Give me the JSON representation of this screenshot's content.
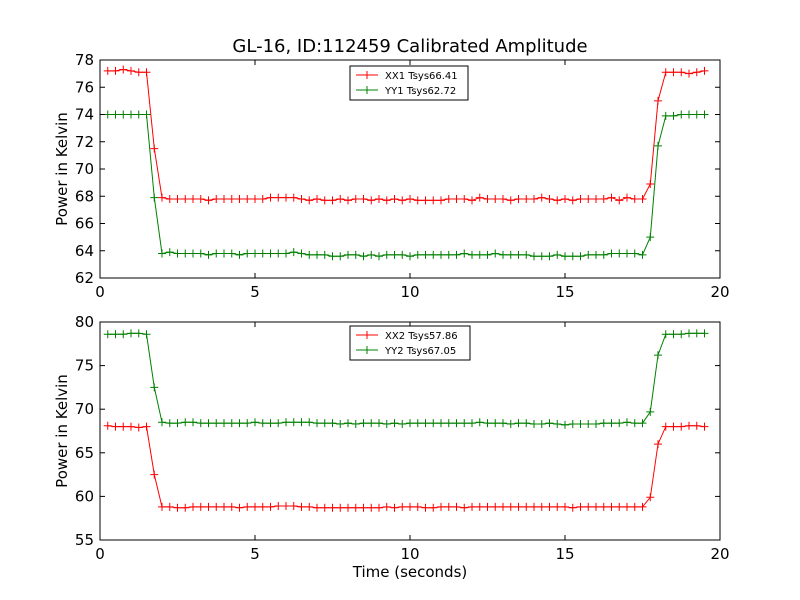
{
  "chart_data": [
    {
      "type": "line",
      "title": "GL-16, ID:112459 Calibrated Amplitude",
      "xlabel": "",
      "ylabel": "Power in Kelvin",
      "xlim": [
        0,
        20
      ],
      "ylim": [
        62,
        78
      ],
      "xticks": [
        0,
        5,
        10,
        15,
        20
      ],
      "yticks": [
        62,
        64,
        66,
        68,
        70,
        72,
        74,
        76,
        78
      ],
      "grid": false,
      "legend_position": "top-center",
      "x": [
        0.25,
        0.5,
        0.75,
        1.0,
        1.25,
        1.5,
        1.75,
        2.0,
        2.25,
        2.5,
        2.75,
        3.0,
        3.25,
        3.5,
        3.75,
        4.0,
        4.25,
        4.5,
        4.75,
        5.0,
        5.25,
        5.5,
        5.75,
        6.0,
        6.25,
        6.5,
        6.75,
        7.0,
        7.25,
        7.5,
        7.75,
        8.0,
        8.25,
        8.5,
        8.75,
        9.0,
        9.25,
        9.5,
        9.75,
        10.0,
        10.25,
        10.5,
        10.75,
        11.0,
        11.25,
        11.5,
        11.75,
        12.0,
        12.25,
        12.5,
        12.75,
        13.0,
        13.25,
        13.5,
        13.75,
        14.0,
        14.25,
        14.5,
        14.75,
        15.0,
        15.25,
        15.5,
        15.75,
        16.0,
        16.25,
        16.5,
        16.75,
        17.0,
        17.25,
        17.5,
        17.75,
        18.0,
        18.25,
        18.5,
        18.75,
        19.0,
        19.25,
        19.5
      ],
      "series": [
        {
          "name": "XX1 Tsys66.41",
          "color": "#ff0000",
          "values": [
            77.2,
            77.2,
            77.3,
            77.2,
            77.1,
            77.1,
            71.5,
            67.9,
            67.8,
            67.8,
            67.8,
            67.8,
            67.8,
            67.7,
            67.8,
            67.8,
            67.8,
            67.8,
            67.8,
            67.8,
            67.8,
            67.9,
            67.9,
            67.9,
            67.9,
            67.8,
            67.7,
            67.8,
            67.7,
            67.7,
            67.8,
            67.7,
            67.8,
            67.8,
            67.7,
            67.8,
            67.7,
            67.8,
            67.7,
            67.8,
            67.7,
            67.7,
            67.7,
            67.7,
            67.8,
            67.8,
            67.8,
            67.7,
            67.9,
            67.8,
            67.8,
            67.8,
            67.7,
            67.8,
            67.8,
            67.8,
            67.9,
            67.8,
            67.7,
            67.8,
            67.7,
            67.8,
            67.8,
            67.8,
            67.8,
            67.9,
            67.7,
            67.9,
            67.8,
            67.8,
            68.9,
            75.0,
            77.1,
            77.1,
            77.1,
            77.0,
            77.1,
            77.2
          ]
        },
        {
          "name": "YY1 Tsys62.72",
          "color": "#008000",
          "values": [
            74.0,
            74.0,
            74.0,
            74.0,
            74.0,
            74.0,
            67.9,
            63.8,
            63.9,
            63.8,
            63.8,
            63.8,
            63.8,
            63.7,
            63.8,
            63.8,
            63.8,
            63.7,
            63.8,
            63.8,
            63.8,
            63.8,
            63.8,
            63.8,
            63.9,
            63.8,
            63.7,
            63.7,
            63.7,
            63.6,
            63.6,
            63.7,
            63.7,
            63.6,
            63.7,
            63.6,
            63.7,
            63.7,
            63.7,
            63.6,
            63.7,
            63.7,
            63.7,
            63.7,
            63.7,
            63.7,
            63.8,
            63.7,
            63.7,
            63.7,
            63.8,
            63.7,
            63.7,
            63.7,
            63.7,
            63.6,
            63.6,
            63.6,
            63.7,
            63.6,
            63.6,
            63.6,
            63.7,
            63.7,
            63.7,
            63.8,
            63.8,
            63.8,
            63.8,
            63.7,
            65.0,
            71.7,
            73.9,
            73.9,
            74.0,
            74.0,
            74.0,
            74.0
          ]
        }
      ]
    },
    {
      "type": "line",
      "title": "",
      "xlabel": "Time (seconds)",
      "ylabel": "Power in Kelvin",
      "xlim": [
        0,
        20
      ],
      "ylim": [
        55,
        80
      ],
      "xticks": [
        0,
        5,
        10,
        15,
        20
      ],
      "yticks": [
        55,
        60,
        65,
        70,
        75,
        80
      ],
      "grid": false,
      "legend_position": "top-center",
      "x": [
        0.25,
        0.5,
        0.75,
        1.0,
        1.25,
        1.5,
        1.75,
        2.0,
        2.25,
        2.5,
        2.75,
        3.0,
        3.25,
        3.5,
        3.75,
        4.0,
        4.25,
        4.5,
        4.75,
        5.0,
        5.25,
        5.5,
        5.75,
        6.0,
        6.25,
        6.5,
        6.75,
        7.0,
        7.25,
        7.5,
        7.75,
        8.0,
        8.25,
        8.5,
        8.75,
        9.0,
        9.25,
        9.5,
        9.75,
        10.0,
        10.25,
        10.5,
        10.75,
        11.0,
        11.25,
        11.5,
        11.75,
        12.0,
        12.25,
        12.5,
        12.75,
        13.0,
        13.25,
        13.5,
        13.75,
        14.0,
        14.25,
        14.5,
        14.75,
        15.0,
        15.25,
        15.5,
        15.75,
        16.0,
        16.25,
        16.5,
        16.75,
        17.0,
        17.25,
        17.5,
        17.75,
        18.0,
        18.25,
        18.5,
        18.75,
        19.0,
        19.25,
        19.5
      ],
      "series": [
        {
          "name": "XX2 Tsys57.86",
          "color": "#ff0000",
          "values": [
            68.1,
            68.0,
            68.0,
            68.0,
            67.9,
            68.0,
            62.5,
            58.8,
            58.8,
            58.7,
            58.7,
            58.8,
            58.8,
            58.8,
            58.8,
            58.8,
            58.8,
            58.7,
            58.8,
            58.8,
            58.8,
            58.8,
            58.9,
            58.9,
            58.9,
            58.8,
            58.8,
            58.7,
            58.7,
            58.7,
            58.7,
            58.7,
            58.7,
            58.7,
            58.7,
            58.7,
            58.8,
            58.7,
            58.8,
            58.8,
            58.8,
            58.7,
            58.7,
            58.8,
            58.8,
            58.8,
            58.7,
            58.8,
            58.8,
            58.8,
            58.8,
            58.8,
            58.8,
            58.8,
            58.8,
            58.8,
            58.8,
            58.8,
            58.8,
            58.8,
            58.7,
            58.8,
            58.8,
            58.8,
            58.8,
            58.8,
            58.8,
            58.8,
            58.8,
            58.8,
            59.9,
            66.0,
            68.0,
            68.0,
            68.0,
            68.1,
            68.1,
            68.0
          ]
        },
        {
          "name": "YY2 Tsys67.05",
          "color": "#008000",
          "values": [
            78.6,
            78.6,
            78.6,
            78.7,
            78.7,
            78.6,
            72.5,
            68.5,
            68.4,
            68.4,
            68.5,
            68.5,
            68.4,
            68.4,
            68.4,
            68.4,
            68.4,
            68.4,
            68.4,
            68.5,
            68.4,
            68.4,
            68.4,
            68.5,
            68.5,
            68.5,
            68.5,
            68.4,
            68.4,
            68.4,
            68.3,
            68.4,
            68.3,
            68.4,
            68.4,
            68.4,
            68.3,
            68.4,
            68.3,
            68.4,
            68.4,
            68.4,
            68.4,
            68.4,
            68.4,
            68.4,
            68.4,
            68.4,
            68.5,
            68.4,
            68.4,
            68.4,
            68.3,
            68.4,
            68.4,
            68.3,
            68.3,
            68.4,
            68.3,
            68.2,
            68.3,
            68.3,
            68.3,
            68.3,
            68.4,
            68.4,
            68.4,
            68.5,
            68.4,
            68.4,
            69.7,
            76.2,
            78.6,
            78.6,
            78.6,
            78.7,
            78.7,
            78.7
          ]
        }
      ]
    }
  ]
}
